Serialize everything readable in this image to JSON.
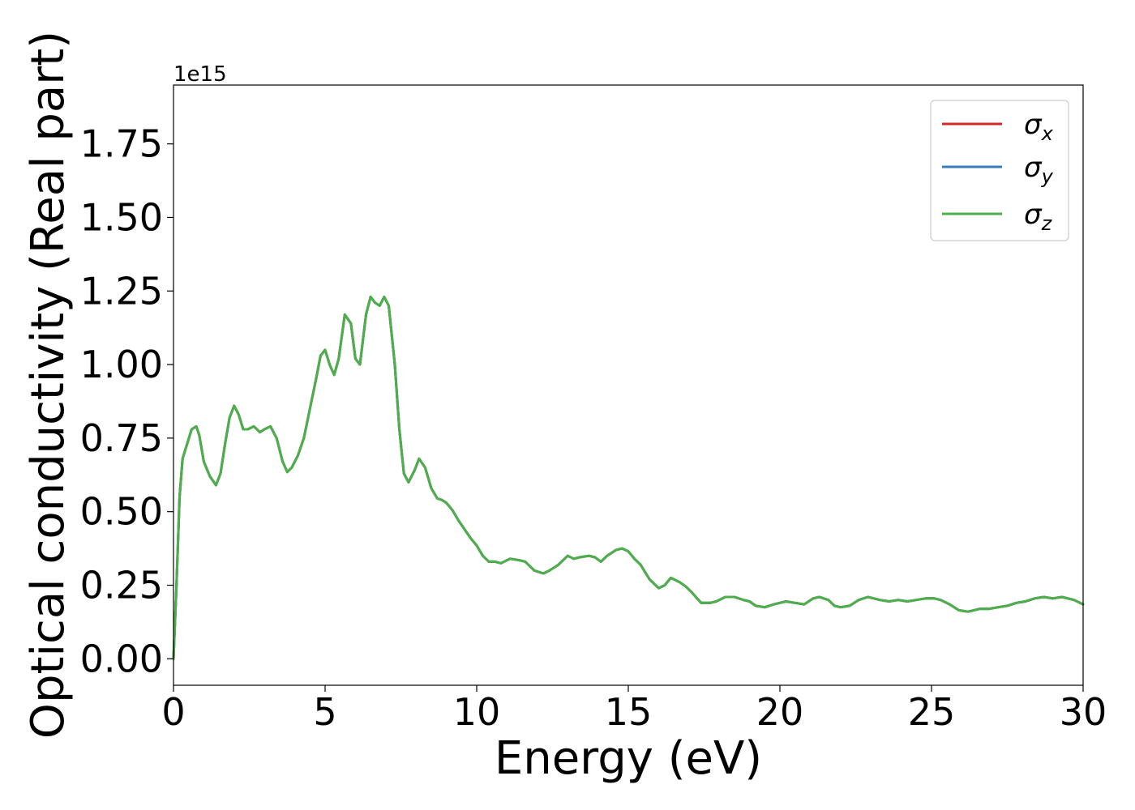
{
  "chart_data": {
    "type": "line",
    "title": "",
    "xlabel": "Energy (eV)",
    "ylabel": "Optical conductivity (Real part)",
    "y_offset_label": "1e15",
    "y_scale_factor": 1000000000000000.0,
    "xlim": [
      0,
      30
    ],
    "ylim": [
      -0.09,
      1.95
    ],
    "x_ticks": [
      0,
      5,
      10,
      15,
      20,
      25,
      30
    ],
    "x_tick_labels": [
      "0",
      "5",
      "10",
      "15",
      "20",
      "25",
      "30"
    ],
    "y_ticks": [
      0,
      0.25,
      0.5,
      0.75,
      1.0,
      1.25,
      1.5,
      1.75
    ],
    "y_tick_labels": [
      "0.00",
      "0.25",
      "0.50",
      "0.75",
      "1.00",
      "1.25",
      "1.50",
      "1.75"
    ],
    "grid": false,
    "legend_position": "top-right",
    "x": [
      0,
      0.1,
      0.2,
      0.3,
      0.45,
      0.6,
      0.75,
      0.85,
      1.0,
      1.2,
      1.4,
      1.55,
      1.7,
      1.85,
      2.0,
      2.15,
      2.3,
      2.45,
      2.65,
      2.85,
      3.0,
      3.2,
      3.4,
      3.6,
      3.75,
      3.9,
      4.1,
      4.3,
      4.5,
      4.7,
      4.85,
      5.0,
      5.15,
      5.3,
      5.45,
      5.65,
      5.85,
      6.0,
      6.15,
      6.35,
      6.5,
      6.65,
      6.8,
      6.95,
      7.1,
      7.3,
      7.45,
      7.6,
      7.75,
      7.95,
      8.1,
      8.3,
      8.5,
      8.7,
      8.85,
      9.0,
      9.2,
      9.4,
      9.6,
      9.8,
      10.0,
      10.2,
      10.4,
      10.6,
      10.8,
      11.1,
      11.4,
      11.6,
      11.9,
      12.2,
      12.4,
      12.7,
      13.0,
      13.2,
      13.4,
      13.7,
      13.9,
      14.1,
      14.3,
      14.6,
      14.8,
      15.0,
      15.2,
      15.4,
      15.7,
      16.0,
      16.2,
      16.4,
      16.7,
      16.9,
      17.1,
      17.4,
      17.7,
      17.9,
      18.2,
      18.5,
      18.8,
      19.0,
      19.2,
      19.5,
      19.8,
      20.0,
      20.2,
      20.5,
      20.8,
      21.1,
      21.3,
      21.6,
      21.8,
      22.0,
      22.3,
      22.6,
      22.9,
      23.1,
      23.3,
      23.6,
      23.9,
      24.2,
      24.5,
      24.8,
      25.1,
      25.3,
      25.6,
      25.9,
      26.2,
      26.4,
      26.6,
      26.9,
      27.2,
      27.5,
      27.8,
      28.1,
      28.4,
      28.7,
      29.0,
      29.3,
      29.5,
      29.7,
      30.0
    ],
    "series": [
      {
        "name": "σx",
        "color": "#d62728",
        "values": [
          0.0,
          0.25,
          0.55,
          0.68,
          0.73,
          0.78,
          0.79,
          0.76,
          0.67,
          0.62,
          0.59,
          0.63,
          0.73,
          0.82,
          0.86,
          0.83,
          0.78,
          0.78,
          0.79,
          0.77,
          0.78,
          0.79,
          0.75,
          0.67,
          0.635,
          0.65,
          0.69,
          0.75,
          0.85,
          0.95,
          1.03,
          1.05,
          1.0,
          0.965,
          1.02,
          1.17,
          1.14,
          1.02,
          1.0,
          1.17,
          1.23,
          1.21,
          1.2,
          1.23,
          1.2,
          1.0,
          0.78,
          0.63,
          0.6,
          0.64,
          0.68,
          0.65,
          0.58,
          0.545,
          0.54,
          0.53,
          0.505,
          0.47,
          0.44,
          0.41,
          0.385,
          0.35,
          0.33,
          0.33,
          0.325,
          0.34,
          0.335,
          0.33,
          0.3,
          0.29,
          0.3,
          0.32,
          0.35,
          0.34,
          0.345,
          0.35,
          0.345,
          0.33,
          0.35,
          0.37,
          0.375,
          0.365,
          0.34,
          0.32,
          0.27,
          0.24,
          0.25,
          0.275,
          0.26,
          0.245,
          0.225,
          0.19,
          0.19,
          0.195,
          0.21,
          0.21,
          0.2,
          0.195,
          0.18,
          0.175,
          0.185,
          0.19,
          0.195,
          0.19,
          0.185,
          0.205,
          0.21,
          0.2,
          0.18,
          0.175,
          0.18,
          0.2,
          0.21,
          0.205,
          0.2,
          0.195,
          0.2,
          0.195,
          0.2,
          0.205,
          0.205,
          0.2,
          0.185,
          0.165,
          0.16,
          0.165,
          0.17,
          0.17,
          0.175,
          0.18,
          0.19,
          0.195,
          0.205,
          0.21,
          0.205,
          0.21,
          0.205,
          0.2,
          0.185
        ]
      },
      {
        "name": "σy",
        "color": "#377eb8",
        "values": [
          0.0,
          0.25,
          0.55,
          0.68,
          0.73,
          0.78,
          0.79,
          0.76,
          0.67,
          0.62,
          0.59,
          0.63,
          0.73,
          0.82,
          0.86,
          0.83,
          0.78,
          0.78,
          0.79,
          0.77,
          0.78,
          0.79,
          0.75,
          0.67,
          0.635,
          0.65,
          0.69,
          0.75,
          0.85,
          0.95,
          1.03,
          1.05,
          1.0,
          0.965,
          1.02,
          1.17,
          1.14,
          1.02,
          1.0,
          1.17,
          1.23,
          1.21,
          1.2,
          1.23,
          1.2,
          1.0,
          0.78,
          0.63,
          0.6,
          0.64,
          0.68,
          0.65,
          0.58,
          0.545,
          0.54,
          0.53,
          0.505,
          0.47,
          0.44,
          0.41,
          0.385,
          0.35,
          0.33,
          0.33,
          0.325,
          0.34,
          0.335,
          0.33,
          0.3,
          0.29,
          0.3,
          0.32,
          0.35,
          0.34,
          0.345,
          0.35,
          0.345,
          0.33,
          0.35,
          0.37,
          0.375,
          0.365,
          0.34,
          0.32,
          0.27,
          0.24,
          0.25,
          0.275,
          0.26,
          0.245,
          0.225,
          0.19,
          0.19,
          0.195,
          0.21,
          0.21,
          0.2,
          0.195,
          0.18,
          0.175,
          0.185,
          0.19,
          0.195,
          0.19,
          0.185,
          0.205,
          0.21,
          0.2,
          0.18,
          0.175,
          0.18,
          0.2,
          0.21,
          0.205,
          0.2,
          0.195,
          0.2,
          0.195,
          0.2,
          0.205,
          0.205,
          0.2,
          0.185,
          0.165,
          0.16,
          0.165,
          0.17,
          0.17,
          0.175,
          0.18,
          0.19,
          0.195,
          0.205,
          0.21,
          0.205,
          0.21,
          0.205,
          0.2,
          0.185
        ]
      },
      {
        "name": "σz",
        "color": "#4daf4a",
        "values": [
          0.0,
          0.25,
          0.55,
          0.68,
          0.73,
          0.78,
          0.79,
          0.76,
          0.67,
          0.62,
          0.59,
          0.63,
          0.73,
          0.82,
          0.86,
          0.83,
          0.78,
          0.78,
          0.79,
          0.77,
          0.78,
          0.79,
          0.75,
          0.67,
          0.635,
          0.65,
          0.69,
          0.75,
          0.85,
          0.95,
          1.03,
          1.05,
          1.0,
          0.965,
          1.02,
          1.17,
          1.14,
          1.02,
          1.0,
          1.17,
          1.23,
          1.21,
          1.2,
          1.23,
          1.2,
          1.0,
          0.78,
          0.63,
          0.6,
          0.64,
          0.68,
          0.65,
          0.58,
          0.545,
          0.54,
          0.53,
          0.505,
          0.47,
          0.44,
          0.41,
          0.385,
          0.35,
          0.33,
          0.33,
          0.325,
          0.34,
          0.335,
          0.33,
          0.3,
          0.29,
          0.3,
          0.32,
          0.35,
          0.34,
          0.345,
          0.35,
          0.345,
          0.33,
          0.35,
          0.37,
          0.375,
          0.365,
          0.34,
          0.32,
          0.27,
          0.24,
          0.25,
          0.275,
          0.26,
          0.245,
          0.225,
          0.19,
          0.19,
          0.195,
          0.21,
          0.21,
          0.2,
          0.195,
          0.18,
          0.175,
          0.185,
          0.19,
          0.195,
          0.19,
          0.185,
          0.205,
          0.21,
          0.2,
          0.18,
          0.175,
          0.18,
          0.2,
          0.21,
          0.205,
          0.2,
          0.195,
          0.2,
          0.195,
          0.2,
          0.205,
          0.205,
          0.2,
          0.185,
          0.165,
          0.16,
          0.165,
          0.17,
          0.17,
          0.175,
          0.18,
          0.19,
          0.195,
          0.205,
          0.21,
          0.205,
          0.21,
          0.205,
          0.2,
          0.185
        ]
      }
    ],
    "legend": [
      {
        "symbol": "σ",
        "sub": "x"
      },
      {
        "symbol": "σ",
        "sub": "y"
      },
      {
        "symbol": "σ",
        "sub": "z"
      }
    ]
  }
}
